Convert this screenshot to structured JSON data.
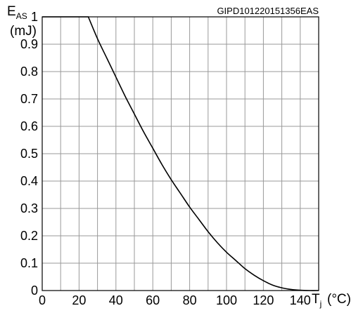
{
  "chart_data": {
    "type": "line",
    "ylabel_main": "E",
    "ylabel_sub": "AS",
    "ylabel_unit": "(mJ)",
    "xlabel_main": "T",
    "xlabel_sub": "j",
    "xlabel_unit": "(°C)",
    "code": "GIPD101220151356EAS",
    "xlim": [
      0,
      150
    ],
    "ylim": [
      0,
      1
    ],
    "x_ticks": [
      0,
      20,
      40,
      60,
      80,
      100,
      120,
      140
    ],
    "y_ticks": [
      0,
      0.1,
      0.2,
      0.3,
      0.4,
      0.5,
      0.6,
      0.7,
      0.8,
      0.9,
      1
    ],
    "x_tick_labels": [
      "0",
      "20",
      "40",
      "60",
      "80",
      "100",
      "120",
      "140"
    ],
    "y_tick_labels": [
      "0",
      "0.1",
      "0.2",
      "0.3",
      "0.4",
      "0.5",
      "0.6",
      "0.7",
      "0.8",
      "0.9",
      "1"
    ],
    "grid": true,
    "series": [
      {
        "x": [
          0,
          25,
          30,
          35,
          40,
          45,
          50,
          55,
          60,
          65,
          70,
          75,
          80,
          85,
          90,
          95,
          100,
          105,
          110,
          115,
          120,
          125,
          130,
          135,
          140,
          145,
          150
        ],
        "y": [
          1,
          1,
          0.92,
          0.85,
          0.78,
          0.71,
          0.645,
          0.58,
          0.52,
          0.46,
          0.405,
          0.355,
          0.305,
          0.26,
          0.215,
          0.175,
          0.14,
          0.11,
          0.08,
          0.056,
          0.036,
          0.02,
          0.01,
          0.004,
          0.001,
          0,
          0
        ]
      }
    ]
  }
}
